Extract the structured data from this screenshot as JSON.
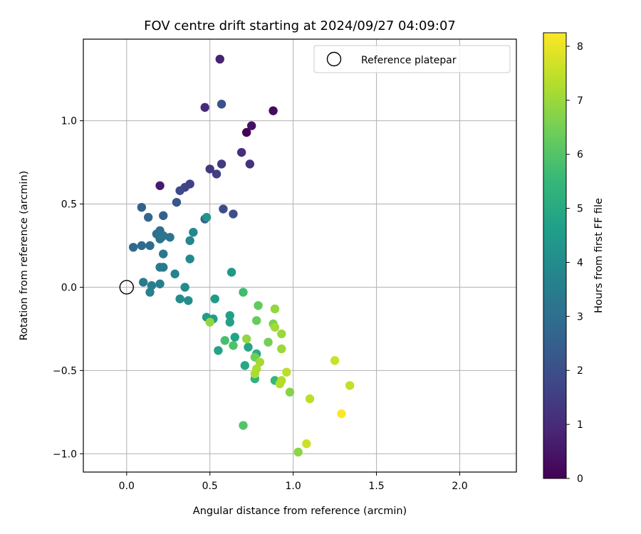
{
  "chart_data": {
    "type": "scatter",
    "title": "FOV centre drift starting at 2024/09/27 04:09:07",
    "xlabel": "Angular distance from reference (arcmin)",
    "ylabel": "Rotation from reference (arcmin)",
    "xlim": [
      -0.26,
      2.34
    ],
    "ylim": [
      -1.11,
      1.49
    ],
    "xticks": [
      0.0,
      0.5,
      1.0,
      1.5,
      2.0
    ],
    "xtick_labels": [
      "0.0",
      "0.5",
      "1.0",
      "1.5",
      "2.0"
    ],
    "yticks": [
      -1.0,
      -0.5,
      0.0,
      0.5,
      1.0
    ],
    "ytick_labels": [
      "−1.0",
      "−0.5",
      "0.0",
      "0.5",
      "1.0"
    ],
    "grid": true,
    "legend": {
      "position": "top-right",
      "entries": [
        "Reference platepar"
      ]
    },
    "reference_point": {
      "x": 0.0,
      "y": 0.0,
      "label": "Reference platepar"
    },
    "colorbar": {
      "label": "Hours from first FF file",
      "range": [
        0,
        8.25
      ],
      "ticks": [
        0,
        1,
        2,
        3,
        4,
        5,
        6,
        7,
        8
      ],
      "colormap": "viridis"
    },
    "points": [
      {
        "x": 0.72,
        "y": 0.93,
        "c": 0.05
      },
      {
        "x": 0.88,
        "y": 1.06,
        "c": 0.2
      },
      {
        "x": 0.75,
        "y": 0.97,
        "c": 0.4
      },
      {
        "x": 0.2,
        "y": 0.61,
        "c": 0.6
      },
      {
        "x": 0.56,
        "y": 1.37,
        "c": 0.8
      },
      {
        "x": 0.47,
        "y": 1.08,
        "c": 1.0
      },
      {
        "x": 0.69,
        "y": 0.81,
        "c": 1.1
      },
      {
        "x": 0.74,
        "y": 0.74,
        "c": 1.2
      },
      {
        "x": 0.5,
        "y": 0.71,
        "c": 1.3
      },
      {
        "x": 0.57,
        "y": 0.74,
        "c": 1.4
      },
      {
        "x": 0.54,
        "y": 0.68,
        "c": 1.5
      },
      {
        "x": 0.38,
        "y": 0.62,
        "c": 1.6
      },
      {
        "x": 0.35,
        "y": 0.6,
        "c": 1.7
      },
      {
        "x": 0.32,
        "y": 0.58,
        "c": 1.8
      },
      {
        "x": 0.58,
        "y": 0.47,
        "c": 1.9
      },
      {
        "x": 0.64,
        "y": 0.44,
        "c": 2.0
      },
      {
        "x": 0.57,
        "y": 1.1,
        "c": 2.1
      },
      {
        "x": 0.3,
        "y": 0.51,
        "c": 2.2
      },
      {
        "x": 0.47,
        "y": 0.41,
        "c": 2.4
      },
      {
        "x": 0.09,
        "y": 0.48,
        "c": 2.5
      },
      {
        "x": 0.22,
        "y": 0.43,
        "c": 2.6
      },
      {
        "x": 0.13,
        "y": 0.42,
        "c": 2.7
      },
      {
        "x": 0.04,
        "y": 0.24,
        "c": 2.8
      },
      {
        "x": 0.09,
        "y": 0.25,
        "c": 2.85
      },
      {
        "x": 0.14,
        "y": 0.25,
        "c": 2.9
      },
      {
        "x": 0.2,
        "y": 0.34,
        "c": 3.0
      },
      {
        "x": 0.18,
        "y": 0.32,
        "c": 3.05
      },
      {
        "x": 0.21,
        "y": 0.3,
        "c": 3.1
      },
      {
        "x": 0.2,
        "y": 0.29,
        "c": 3.15
      },
      {
        "x": 0.22,
        "y": 0.31,
        "c": 3.2
      },
      {
        "x": 0.26,
        "y": 0.3,
        "c": 3.25
      },
      {
        "x": 0.22,
        "y": 0.2,
        "c": 3.3
      },
      {
        "x": 0.2,
        "y": 0.12,
        "c": 3.35
      },
      {
        "x": 0.22,
        "y": 0.12,
        "c": 3.4
      },
      {
        "x": 0.1,
        "y": 0.03,
        "c": 3.45
      },
      {
        "x": 0.15,
        "y": 0.01,
        "c": 3.5
      },
      {
        "x": 0.2,
        "y": 0.02,
        "c": 3.55
      },
      {
        "x": 0.14,
        "y": -0.03,
        "c": 3.6
      },
      {
        "x": 0.29,
        "y": 0.08,
        "c": 3.7
      },
      {
        "x": 0.38,
        "y": 0.28,
        "c": 3.8
      },
      {
        "x": 0.4,
        "y": 0.33,
        "c": 3.85
      },
      {
        "x": 0.38,
        "y": 0.17,
        "c": 3.9
      },
      {
        "x": 0.35,
        "y": 0.0,
        "c": 3.95
      },
      {
        "x": 0.32,
        "y": -0.07,
        "c": 4.0
      },
      {
        "x": 0.37,
        "y": -0.08,
        "c": 4.05
      },
      {
        "x": 0.48,
        "y": 0.42,
        "c": 4.3
      },
      {
        "x": 0.63,
        "y": 0.09,
        "c": 4.4
      },
      {
        "x": 0.53,
        "y": -0.07,
        "c": 4.5
      },
      {
        "x": 0.48,
        "y": -0.18,
        "c": 4.55
      },
      {
        "x": 0.52,
        "y": -0.19,
        "c": 4.6
      },
      {
        "x": 0.62,
        "y": -0.17,
        "c": 4.65
      },
      {
        "x": 0.62,
        "y": -0.21,
        "c": 4.7
      },
      {
        "x": 0.65,
        "y": -0.3,
        "c": 4.75
      },
      {
        "x": 0.55,
        "y": -0.38,
        "c": 4.8
      },
      {
        "x": 0.73,
        "y": -0.36,
        "c": 4.85
      },
      {
        "x": 0.71,
        "y": -0.47,
        "c": 4.9
      },
      {
        "x": 0.78,
        "y": -0.4,
        "c": 5.0
      },
      {
        "x": 0.77,
        "y": -0.55,
        "c": 5.3
      },
      {
        "x": 0.89,
        "y": -0.56,
        "c": 5.5
      },
      {
        "x": 0.7,
        "y": -0.03,
        "c": 5.7
      },
      {
        "x": 0.59,
        "y": -0.32,
        "c": 5.8
      },
      {
        "x": 0.64,
        "y": -0.35,
        "c": 5.9
      },
      {
        "x": 0.7,
        "y": -0.83,
        "c": 6.0
      },
      {
        "x": 0.79,
        "y": -0.11,
        "c": 6.2
      },
      {
        "x": 0.78,
        "y": -0.2,
        "c": 6.3
      },
      {
        "x": 0.77,
        "y": -0.42,
        "c": 6.4
      },
      {
        "x": 0.85,
        "y": -0.33,
        "c": 6.5
      },
      {
        "x": 0.88,
        "y": -0.22,
        "c": 6.6
      },
      {
        "x": 0.98,
        "y": -0.63,
        "c": 6.7
      },
      {
        "x": 1.03,
        "y": -0.99,
        "c": 6.8
      },
      {
        "x": 0.89,
        "y": -0.13,
        "c": 6.9
      },
      {
        "x": 0.72,
        "y": -0.31,
        "c": 6.9
      },
      {
        "x": 0.5,
        "y": -0.21,
        "c": 6.9
      },
      {
        "x": 0.93,
        "y": -0.28,
        "c": 7.0
      },
      {
        "x": 0.93,
        "y": -0.37,
        "c": 7.0
      },
      {
        "x": 0.89,
        "y": -0.24,
        "c": 7.1
      },
      {
        "x": 0.8,
        "y": -0.45,
        "c": 7.1
      },
      {
        "x": 0.78,
        "y": -0.49,
        "c": 7.2
      },
      {
        "x": 0.77,
        "y": -0.52,
        "c": 7.2
      },
      {
        "x": 0.93,
        "y": -0.56,
        "c": 7.3
      },
      {
        "x": 0.92,
        "y": -0.58,
        "c": 7.3
      },
      {
        "x": 0.96,
        "y": -0.51,
        "c": 7.4
      },
      {
        "x": 1.1,
        "y": -0.67,
        "c": 7.4
      },
      {
        "x": 1.34,
        "y": -0.59,
        "c": 7.5
      },
      {
        "x": 1.25,
        "y": -0.44,
        "c": 7.6
      },
      {
        "x": 1.08,
        "y": -0.94,
        "c": 7.6
      },
      {
        "x": 1.29,
        "y": -0.76,
        "c": 8.25
      }
    ]
  }
}
